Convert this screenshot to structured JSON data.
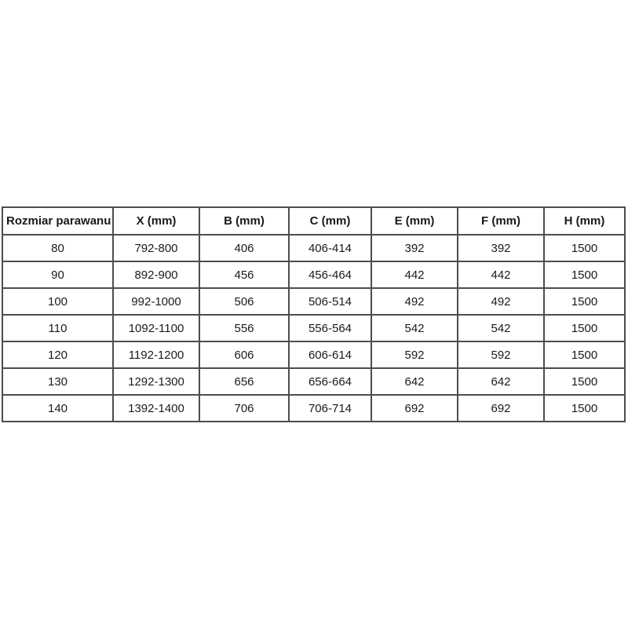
{
  "chart_data": {
    "type": "table",
    "columns": [
      "Rozmiar parawanu",
      "X (mm)",
      "B (mm)",
      "C (mm)",
      "E (mm)",
      "F (mm)",
      "H (mm)"
    ],
    "rows": [
      [
        "80",
        "792-800",
        "406",
        "406-414",
        "392",
        "392",
        "1500"
      ],
      [
        "90",
        "892-900",
        "456",
        "456-464",
        "442",
        "442",
        "1500"
      ],
      [
        "100",
        "992-1000",
        "506",
        "506-514",
        "492",
        "492",
        "1500"
      ],
      [
        "110",
        "1092-1100",
        "556",
        "556-564",
        "542",
        "542",
        "1500"
      ],
      [
        "120",
        "1192-1200",
        "606",
        "606-614",
        "592",
        "592",
        "1500"
      ],
      [
        "130",
        "1292-1300",
        "656",
        "656-664",
        "642",
        "642",
        "1500"
      ],
      [
        "140",
        "1392-1400",
        "706",
        "706-714",
        "692",
        "692",
        "1500"
      ]
    ],
    "layout": {
      "grid": true,
      "border_color": "#4d4d4d",
      "text_color": "#1a1a1a",
      "background": "#ffffff"
    }
  }
}
